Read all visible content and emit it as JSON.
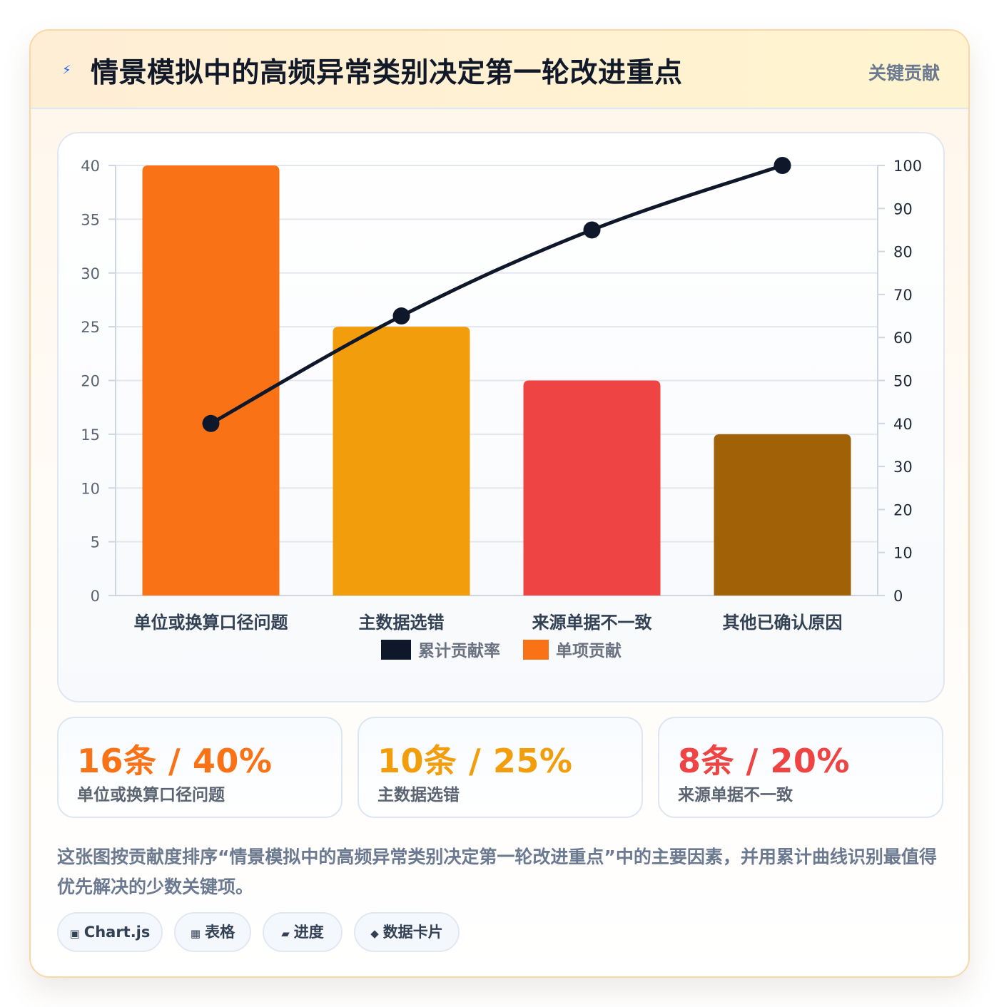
{
  "header": {
    "icon": "lightning-icon",
    "title": "情景模拟中的高频异常类别决定第一轮改进重点",
    "tag": "关键贡献"
  },
  "chart_data": {
    "type": "bar",
    "categories": [
      "单位或换算口径问题",
      "主数据选错",
      "来源单据不一致",
      "其他已确认原因"
    ],
    "series": [
      {
        "name": "单项贡献",
        "type": "bar",
        "axis": "left",
        "values": [
          40,
          25,
          20,
          15
        ]
      },
      {
        "name": "累计贡献率",
        "type": "line",
        "axis": "right",
        "values": [
          40,
          65,
          85,
          100
        ]
      }
    ],
    "bar_colors": [
      "#f97316",
      "#f29e0c",
      "#ef4444",
      "#a16207"
    ],
    "line_color": "#0f172a",
    "ylim_left": [
      0,
      40
    ],
    "yticks_left": [
      0,
      5,
      10,
      15,
      20,
      25,
      30,
      35,
      40
    ],
    "ylim_right": [
      0,
      100
    ],
    "yticks_right": [
      0,
      10,
      20,
      30,
      40,
      50,
      60,
      70,
      80,
      90,
      100
    ],
    "grid": true,
    "legend": [
      {
        "label": "累计贡献率",
        "color": "#0f172a"
      },
      {
        "label": "单项贡献",
        "color": "#f97316"
      }
    ],
    "legend_position": "bottom"
  },
  "stats": [
    {
      "value": "16条 / 40%",
      "label": "单位或换算口径问题",
      "color": "#f97316"
    },
    {
      "value": "10条 / 25%",
      "label": "主数据选错",
      "color": "#f29e0c"
    },
    {
      "value": "8条 / 20%",
      "label": "来源单据不一致",
      "color": "#ef4444"
    }
  ],
  "description": "这张图按贡献度排序“情景模拟中的高频异常类别决定第一轮改进重点”中的主要因素，并用累计曲线识别最值得优先解决的少数关键项。",
  "tags": [
    {
      "icon": "▣",
      "label": "Chart.js"
    },
    {
      "icon": "▦",
      "label": "表格"
    },
    {
      "icon": "▰",
      "label": "进度"
    },
    {
      "icon": "◆",
      "label": "数据卡片"
    }
  ]
}
